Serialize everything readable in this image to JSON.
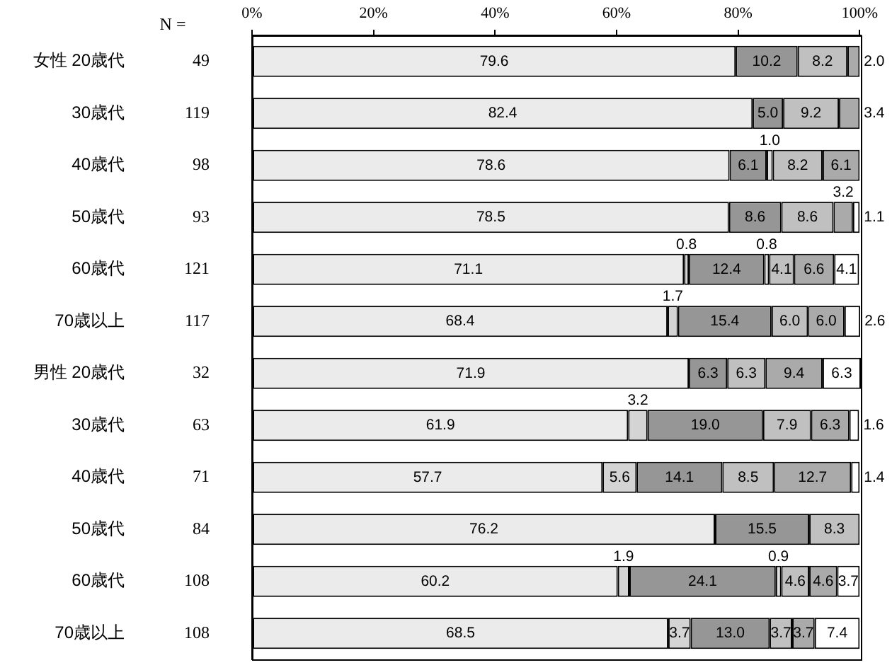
{
  "chart_data": {
    "type": "bar",
    "orientation": "horizontal",
    "stacked": true,
    "categories": [
      "女性 20歳代",
      "30歳代",
      "40歳代",
      "50歳代",
      "60歳代",
      "70歳以上",
      "男性 20歳代",
      "30歳代",
      "40歳代",
      "50歳代",
      "60歳代",
      "70歳以上"
    ],
    "y2_categories": [
      "49",
      "119",
      "98",
      "93",
      "121",
      "117",
      "32",
      "63",
      "71",
      "84",
      "108",
      "108"
    ],
    "annotations": [
      "N ="
    ],
    "xlim": [
      0,
      100.2
    ],
    "xticks": [
      {
        "value": 0,
        "label": "0%"
      },
      {
        "value": 20,
        "label": "20%"
      },
      {
        "value": 40,
        "label": "40%"
      },
      {
        "value": 60,
        "label": "60%"
      },
      {
        "value": 80,
        "label": "80%"
      },
      {
        "value": 100,
        "label": "100%"
      }
    ],
    "series": [
      {
        "color": "#ebebeb",
        "values": [
          79.6,
          82.4,
          78.6,
          78.5,
          71.1,
          68.4,
          71.9,
          61.9,
          57.7,
          76.2,
          60.2,
          68.5
        ],
        "value_labels": [
          "79.6",
          "82.4",
          "78.6",
          "78.5",
          "71.1",
          "68.4",
          "71.9",
          "61.9",
          "57.7",
          "76.2",
          "60.2",
          "68.5"
        ]
      },
      {
        "color": "#d4d4d4",
        "values": [
          null,
          null,
          null,
          null,
          0.8,
          1.7,
          null,
          3.2,
          5.6,
          null,
          1.9,
          3.7
        ],
        "value_labels": [
          null,
          null,
          null,
          null,
          "0.8",
          "1.7",
          null,
          "3.2",
          "5.6",
          null,
          "1.9",
          "3.7"
        ]
      },
      {
        "color": "#969696",
        "values": [
          10.2,
          5.0,
          6.1,
          8.6,
          12.4,
          15.4,
          6.3,
          19.0,
          14.1,
          15.5,
          24.1,
          13.0
        ],
        "value_labels": [
          "10.2",
          "5.0",
          "6.1",
          "8.6",
          "12.4",
          "15.4",
          "6.3",
          "19.0",
          "14.1",
          "15.5",
          "24.1",
          "13.0"
        ]
      },
      {
        "color": "#dedede",
        "values": [
          null,
          null,
          1.0,
          null,
          0.8,
          null,
          null,
          null,
          null,
          null,
          0.9,
          null
        ],
        "value_labels": [
          null,
          null,
          "1.0",
          null,
          "0.8",
          null,
          null,
          null,
          null,
          null,
          "0.9",
          null
        ]
      },
      {
        "color": "#c0c0c0",
        "values": [
          8.2,
          9.2,
          8.2,
          8.6,
          4.1,
          6.0,
          6.3,
          7.9,
          8.5,
          8.3,
          4.6,
          3.7
        ],
        "value_labels": [
          "8.2",
          "9.2",
          "8.2",
          "8.6",
          "4.1",
          "6.0",
          "6.3",
          "7.9",
          "8.5",
          "8.3",
          "4.6",
          "3.7"
        ]
      },
      {
        "color": "#aaaaaa",
        "values": [
          2.0,
          3.4,
          6.1,
          3.2,
          6.6,
          6.0,
          9.4,
          6.3,
          12.7,
          null,
          4.6,
          3.7
        ],
        "value_labels": [
          "2.0",
          "3.4",
          "6.1",
          "3.2",
          "6.6",
          "6.0",
          "9.4",
          "6.3",
          "12.7",
          null,
          "4.6",
          "3.7"
        ]
      },
      {
        "color": "#ffffff",
        "values": [
          null,
          null,
          null,
          1.1,
          4.1,
          2.6,
          6.3,
          1.6,
          1.4,
          null,
          3.7,
          7.4
        ],
        "value_labels": [
          null,
          null,
          null,
          "1.1",
          "4.1",
          "2.6",
          "6.3",
          "1.6",
          "1.4",
          null,
          "3.7",
          "7.4"
        ]
      }
    ]
  }
}
